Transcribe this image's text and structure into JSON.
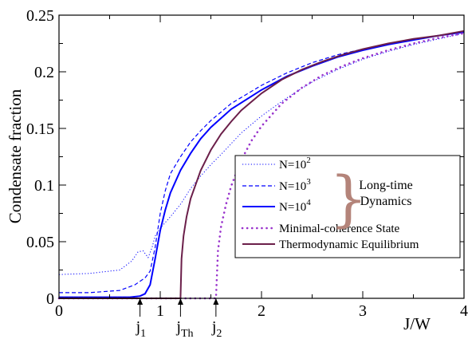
{
  "chart_data": {
    "type": "line",
    "xlabel": "J/W",
    "ylabel": "Condensate fraction",
    "xlim": [
      0,
      4
    ],
    "ylim": [
      0,
      0.25
    ],
    "x_ticks": [
      "0",
      "1",
      "2",
      "3",
      "4"
    ],
    "y_ticks": [
      "0",
      "0.05",
      "0.1",
      "0.15",
      "0.2",
      "0.25"
    ],
    "grid": false,
    "legend_position": "center-right",
    "brace_label": [
      "Long-time",
      "Dynamics"
    ],
    "brace_color": "#b4847a",
    "markers": [
      {
        "base": "j",
        "sub": "1",
        "x": 0.8
      },
      {
        "base": "j",
        "sub": "Th",
        "x": 1.2
      },
      {
        "base": "j",
        "sub": "2",
        "x": 1.55
      }
    ],
    "series": [
      {
        "name_base": "N=10",
        "name_exp": "2",
        "color": "#0000ff",
        "style": "dotted",
        "points": [
          [
            0,
            0.021
          ],
          [
            0.3,
            0.022
          ],
          [
            0.6,
            0.025
          ],
          [
            0.72,
            0.033
          ],
          [
            0.78,
            0.041
          ],
          [
            0.83,
            0.042
          ],
          [
            0.88,
            0.036
          ],
          [
            0.92,
            0.045
          ],
          [
            0.95,
            0.055
          ],
          [
            1.0,
            0.062
          ],
          [
            1.1,
            0.072
          ],
          [
            1.2,
            0.083
          ],
          [
            1.3,
            0.097
          ],
          [
            1.4,
            0.108
          ],
          [
            1.5,
            0.118
          ],
          [
            1.6,
            0.127
          ],
          [
            1.8,
            0.146
          ],
          [
            2.0,
            0.161
          ],
          [
            2.25,
            0.177
          ],
          [
            2.5,
            0.191
          ],
          [
            2.75,
            0.202
          ],
          [
            3.0,
            0.211
          ],
          [
            3.25,
            0.218
          ],
          [
            3.5,
            0.224
          ],
          [
            3.75,
            0.229
          ],
          [
            4.0,
            0.234
          ]
        ]
      },
      {
        "name_base": "N=10",
        "name_exp": "3",
        "color": "#0000ff",
        "style": "dashed",
        "points": [
          [
            0,
            0.005
          ],
          [
            0.3,
            0.005
          ],
          [
            0.6,
            0.007
          ],
          [
            0.75,
            0.012
          ],
          [
            0.85,
            0.018
          ],
          [
            0.9,
            0.024
          ],
          [
            0.95,
            0.045
          ],
          [
            1.0,
            0.075
          ],
          [
            1.05,
            0.095
          ],
          [
            1.1,
            0.11
          ],
          [
            1.2,
            0.125
          ],
          [
            1.3,
            0.138
          ],
          [
            1.4,
            0.148
          ],
          [
            1.5,
            0.157
          ],
          [
            1.7,
            0.172
          ],
          [
            2.0,
            0.188
          ],
          [
            2.25,
            0.199
          ],
          [
            2.5,
            0.208
          ],
          [
            2.75,
            0.215
          ],
          [
            3.0,
            0.22
          ],
          [
            3.25,
            0.225
          ],
          [
            3.5,
            0.229
          ],
          [
            3.75,
            0.232
          ],
          [
            4.0,
            0.235
          ]
        ]
      },
      {
        "name_base": "N=10",
        "name_exp": "4",
        "color": "#0000ff",
        "style": "solid",
        "points": [
          [
            0,
            0.001
          ],
          [
            0.5,
            0.001
          ],
          [
            0.7,
            0.001
          ],
          [
            0.8,
            0.002
          ],
          [
            0.85,
            0.004
          ],
          [
            0.9,
            0.012
          ],
          [
            0.95,
            0.035
          ],
          [
            1.0,
            0.06
          ],
          [
            1.05,
            0.078
          ],
          [
            1.1,
            0.093
          ],
          [
            1.2,
            0.113
          ],
          [
            1.3,
            0.128
          ],
          [
            1.4,
            0.141
          ],
          [
            1.5,
            0.151
          ],
          [
            1.7,
            0.167
          ],
          [
            2.0,
            0.184
          ],
          [
            2.25,
            0.196
          ],
          [
            2.5,
            0.205
          ],
          [
            2.75,
            0.213
          ],
          [
            3.0,
            0.219
          ],
          [
            3.25,
            0.224
          ],
          [
            3.5,
            0.228
          ],
          [
            3.75,
            0.232
          ],
          [
            4.0,
            0.235
          ]
        ]
      },
      {
        "name_base": "Minimal-coherence State",
        "name_exp": "",
        "color": "#9933cc",
        "style": "dotted-heavy",
        "points": [
          [
            0,
            0.0
          ],
          [
            1.55,
            0.0
          ],
          [
            1.57,
            0.042
          ],
          [
            1.6,
            0.063
          ],
          [
            1.65,
            0.083
          ],
          [
            1.7,
            0.099
          ],
          [
            1.8,
            0.122
          ],
          [
            1.9,
            0.139
          ],
          [
            2.0,
            0.152
          ],
          [
            2.2,
            0.172
          ],
          [
            2.4,
            0.186
          ],
          [
            2.6,
            0.197
          ],
          [
            2.8,
            0.205
          ],
          [
            3.0,
            0.212
          ],
          [
            3.25,
            0.219
          ],
          [
            3.5,
            0.225
          ],
          [
            3.75,
            0.23
          ],
          [
            4.0,
            0.234
          ]
        ]
      },
      {
        "name_base": "Thermodynamic Equilibrium",
        "name_exp": "",
        "color": "#6b1f4a",
        "style": "solid",
        "points": [
          [
            0,
            0.0
          ],
          [
            1.2,
            0.0
          ],
          [
            1.21,
            0.035
          ],
          [
            1.23,
            0.055
          ],
          [
            1.26,
            0.072
          ],
          [
            1.3,
            0.088
          ],
          [
            1.4,
            0.113
          ],
          [
            1.5,
            0.131
          ],
          [
            1.6,
            0.145
          ],
          [
            1.7,
            0.156
          ],
          [
            1.8,
            0.166
          ],
          [
            2.0,
            0.181
          ],
          [
            2.2,
            0.193
          ],
          [
            2.4,
            0.202
          ],
          [
            2.6,
            0.209
          ],
          [
            2.8,
            0.215
          ],
          [
            3.0,
            0.22
          ],
          [
            3.25,
            0.225
          ],
          [
            3.5,
            0.229
          ],
          [
            3.75,
            0.232
          ],
          [
            4.0,
            0.236
          ]
        ]
      }
    ]
  }
}
